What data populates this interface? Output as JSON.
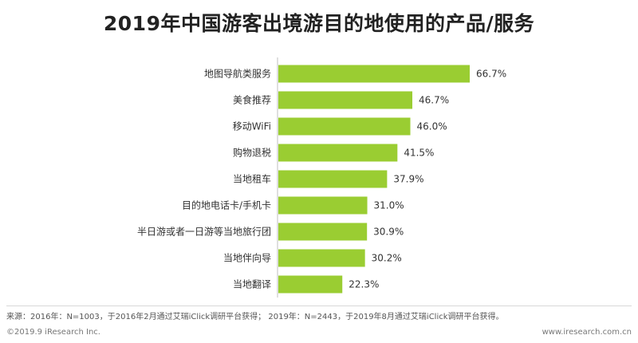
{
  "title": "2019年中国游客出境游目的地使用的产品/服务",
  "chart_data": {
    "type": "bar",
    "orientation": "horizontal",
    "bar_color": "#9acd32",
    "categories": [
      "地图导航类服务",
      "美食推荐",
      "移动WiFi",
      "购物退税",
      "当地租车",
      "目的地电话卡/手机卡",
      "半日游或者一日游等当地旅行团",
      "当地伴向导",
      "当地翻译"
    ],
    "values": [
      66.7,
      46.7,
      46.0,
      41.5,
      37.9,
      31.0,
      30.9,
      30.2,
      22.3
    ],
    "value_labels": [
      "66.7%",
      "46.7%",
      "46.0%",
      "41.5%",
      "37.9%",
      "31.0%",
      "30.9%",
      "30.2%",
      "22.3%"
    ],
    "xlim": [
      0,
      66.7
    ],
    "grid": false,
    "legend": false
  },
  "footer": {
    "source": "来源：2016年：N=1003，于2016年2月通过艾瑞iClick调研平台获得；  2019年：N=2443，于2019年8月通过艾瑞iClick调研平台获得。",
    "copyright": "©2019.9 iResearch Inc.",
    "website": "www.iresearch.com.cn"
  }
}
